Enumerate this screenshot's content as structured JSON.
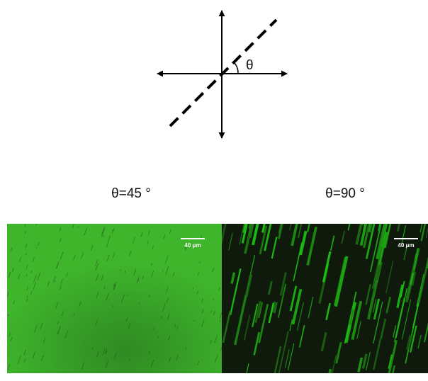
{
  "diagram": {
    "angle_symbol": "θ"
  },
  "panels": [
    {
      "label": "θ=45 °",
      "scale_bar": "40 μm"
    },
    {
      "label": "θ=90 °",
      "scale_bar": "40 μm"
    }
  ]
}
